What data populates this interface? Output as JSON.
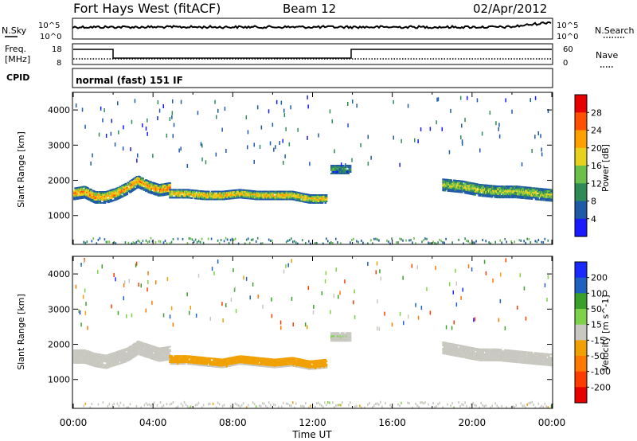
{
  "header": {
    "station": "Fort Hays West (fitACF)",
    "beam": "Beam 12",
    "date": "02/Apr/2012"
  },
  "top_panels": {
    "nsky_label": "N.Sky",
    "nsearch_label": "N.Search",
    "nsky_ticks": [
      "10^5",
      "10^0"
    ],
    "nsearch_ticks": [
      "10^5",
      "10^0"
    ],
    "freq_label_1": "Freq.",
    "freq_label_2": "[MHz]",
    "freq_ticks": [
      "18",
      "8"
    ],
    "nave_label": "Nave",
    "nave_ticks": [
      "60",
      "0"
    ],
    "cpid_label": "CPID",
    "cpid_text": "normal (fast) 151 IF"
  },
  "colors": {
    "power_scale": [
      "#1a1aff",
      "#1e5aa8",
      "#2e8b57",
      "#6cc04a",
      "#e6d21e",
      "#ffa000",
      "#ff5000",
      "#e60000"
    ],
    "velocity_scale": [
      "#1a2aff",
      "#2060c0",
      "#3aa02a",
      "#7ed24a",
      "#c8c8c0",
      "#f0a000",
      "#ff7800",
      "#ff3c00",
      "#e60000"
    ],
    "axis": "#000000"
  },
  "chart_data": [
    {
      "type": "heatmap",
      "title": "",
      "xlabel": "Time UT",
      "ylabel": "Slant Range [km]",
      "xlim": [
        0,
        24
      ],
      "ylim": [
        180,
        4500
      ],
      "xticks": [
        "00:00",
        "04:00",
        "08:00",
        "12:00",
        "16:00",
        "20:00",
        "00:00"
      ],
      "yticks": [
        "1000",
        "2000",
        "3000",
        "4000"
      ],
      "colorbar": {
        "label": "Power [dB]",
        "ticks": [
          "4",
          "8",
          "12",
          "16",
          "20",
          "24",
          "28"
        ],
        "range": [
          0,
          30
        ]
      },
      "bands": [
        {
          "t0": 0.0,
          "t1": 4.8,
          "center": [
            1600,
            1650,
            1500,
            1500,
            1600,
            1750,
            1950,
            1800,
            1700,
            1750
          ],
          "width": 330,
          "value": 22
        },
        {
          "t0": 4.8,
          "t1": 12.7,
          "center": [
            1600,
            1600,
            1550,
            1550,
            1600,
            1550,
            1550,
            1550,
            1450,
            1450
          ],
          "width": 230,
          "value": 20
        },
        {
          "t0": 12.9,
          "t1": 13.9,
          "center": [
            2300
          ],
          "width": 260,
          "value": 10
        },
        {
          "t0": 18.5,
          "t1": 24.0,
          "center": [
            1850,
            1800,
            1700,
            1650,
            1650,
            1600,
            1550
          ],
          "width": 320,
          "value": 16
        }
      ]
    },
    {
      "type": "heatmap",
      "title": "",
      "xlabel": "Time UT",
      "ylabel": "Slant Range [km]",
      "xlim": [
        0,
        24
      ],
      "ylim": [
        180,
        4500
      ],
      "xticks": [
        "00:00",
        "04:00",
        "08:00",
        "12:00",
        "16:00",
        "20:00",
        "00:00"
      ],
      "yticks": [
        "1000",
        "2000",
        "3000",
        "4000"
      ],
      "colorbar": {
        "label": "Velocity [m s^-1]",
        "ticks": [
          "200",
          "100",
          "50",
          "15",
          "-15",
          "-50",
          "-100",
          "-200"
        ],
        "range": [
          -250,
          250
        ]
      },
      "bands": [
        {
          "t0": 0.0,
          "t1": 4.8,
          "center": [
            1650,
            1650,
            1550,
            1500,
            1600,
            1700,
            1900,
            1800,
            1700,
            1750
          ],
          "width": 400,
          "value": 0
        },
        {
          "t0": 4.8,
          "t1": 12.7,
          "center": [
            1550,
            1550,
            1500,
            1450,
            1550,
            1500,
            1450,
            1500,
            1400,
            1450
          ],
          "width": 260,
          "value": -60
        },
        {
          "t0": 12.9,
          "t1": 13.9,
          "center": [
            2200
          ],
          "width": 250,
          "value": 30
        },
        {
          "t0": 18.5,
          "t1": 24.0,
          "center": [
            1900,
            1800,
            1700,
            1700,
            1650,
            1600,
            1550
          ],
          "width": 360,
          "value": 0
        }
      ]
    }
  ]
}
